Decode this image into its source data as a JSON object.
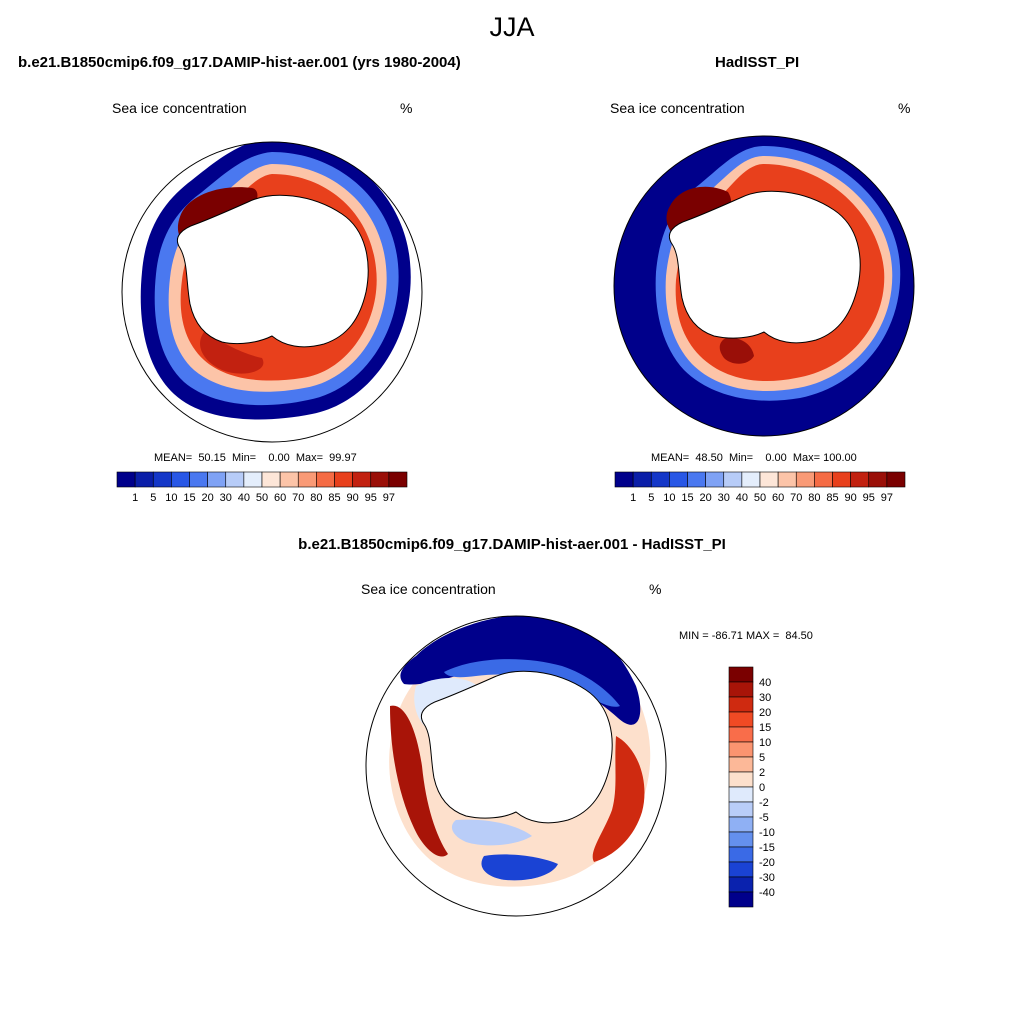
{
  "page": {
    "title": "JJA",
    "panel_left_title": "b.e21.B1850cmip6.f09_g17.DAMIP-hist-aer.001 (yrs 1980-2004)",
    "panel_right_title": "HadISST_PI",
    "panel_diff_title": "b.e21.B1850cmip6.f09_g17.DAMIP-hist-aer.001 - HadISST_PI",
    "variable_label": "Sea ice concentration",
    "units_label": "%",
    "left_stats": "MEAN=  50.15  Min=    0.00  Max=  99.97",
    "right_stats": "MEAN=  48.50  Min=    0.00  Max= 100.00",
    "diff_stats": "MIN = -86.71 MAX =  84.50"
  },
  "chart_data": [
    {
      "type": "heatmap",
      "name": "model",
      "projection": "south-polar-stereographic",
      "variable": "Sea ice concentration",
      "units": "%",
      "mean": 50.15,
      "min": 0.0,
      "max": 99.97,
      "colorbar": {
        "orientation": "horizontal",
        "levels": [
          "1",
          "5",
          "10",
          "15",
          "20",
          "30",
          "40",
          "50",
          "60",
          "70",
          "80",
          "85",
          "90",
          "95",
          "97"
        ],
        "colors": [
          "#00008b",
          "#0a1ea8",
          "#1437c8",
          "#2857e6",
          "#4a78f0",
          "#7fa2f5",
          "#b7ccf8",
          "#e4eefc",
          "#fde6d8",
          "#fcc4a8",
          "#f99a76",
          "#f56b44",
          "#e8401c",
          "#c22110",
          "#9a0f08",
          "#7a0000"
        ]
      }
    },
    {
      "type": "heatmap",
      "name": "observations",
      "projection": "south-polar-stereographic",
      "variable": "Sea ice concentration",
      "units": "%",
      "mean": 48.5,
      "min": 0.0,
      "max": 100.0,
      "colorbar": {
        "orientation": "horizontal",
        "levels": [
          "1",
          "5",
          "10",
          "15",
          "20",
          "30",
          "40",
          "50",
          "60",
          "70",
          "80",
          "85",
          "90",
          "95",
          "97"
        ],
        "colors": [
          "#00008b",
          "#0a1ea8",
          "#1437c8",
          "#2857e6",
          "#4a78f0",
          "#7fa2f5",
          "#b7ccf8",
          "#e4eefc",
          "#fde6d8",
          "#fcc4a8",
          "#f99a76",
          "#f56b44",
          "#e8401c",
          "#c22110",
          "#9a0f08",
          "#7a0000"
        ]
      }
    },
    {
      "type": "heatmap",
      "name": "difference",
      "projection": "south-polar-stereographic",
      "variable": "Sea ice concentration",
      "units": "%",
      "min": -86.71,
      "max": 84.5,
      "colorbar": {
        "orientation": "vertical",
        "levels": [
          "40",
          "30",
          "20",
          "15",
          "10",
          "5",
          "2",
          "0",
          "-2",
          "-5",
          "-10",
          "-15",
          "-20",
          "-30",
          "-40"
        ],
        "colors": [
          "#7a0000",
          "#a81408",
          "#cf2a10",
          "#f04a24",
          "#f96d4a",
          "#fb9470",
          "#fcb898",
          "#fde0cc",
          "#dfeafc",
          "#b9cdf8",
          "#8fb0f4",
          "#6490ee",
          "#3a6ae6",
          "#1a43d4",
          "#0a22ae",
          "#00008b"
        ]
      }
    }
  ]
}
